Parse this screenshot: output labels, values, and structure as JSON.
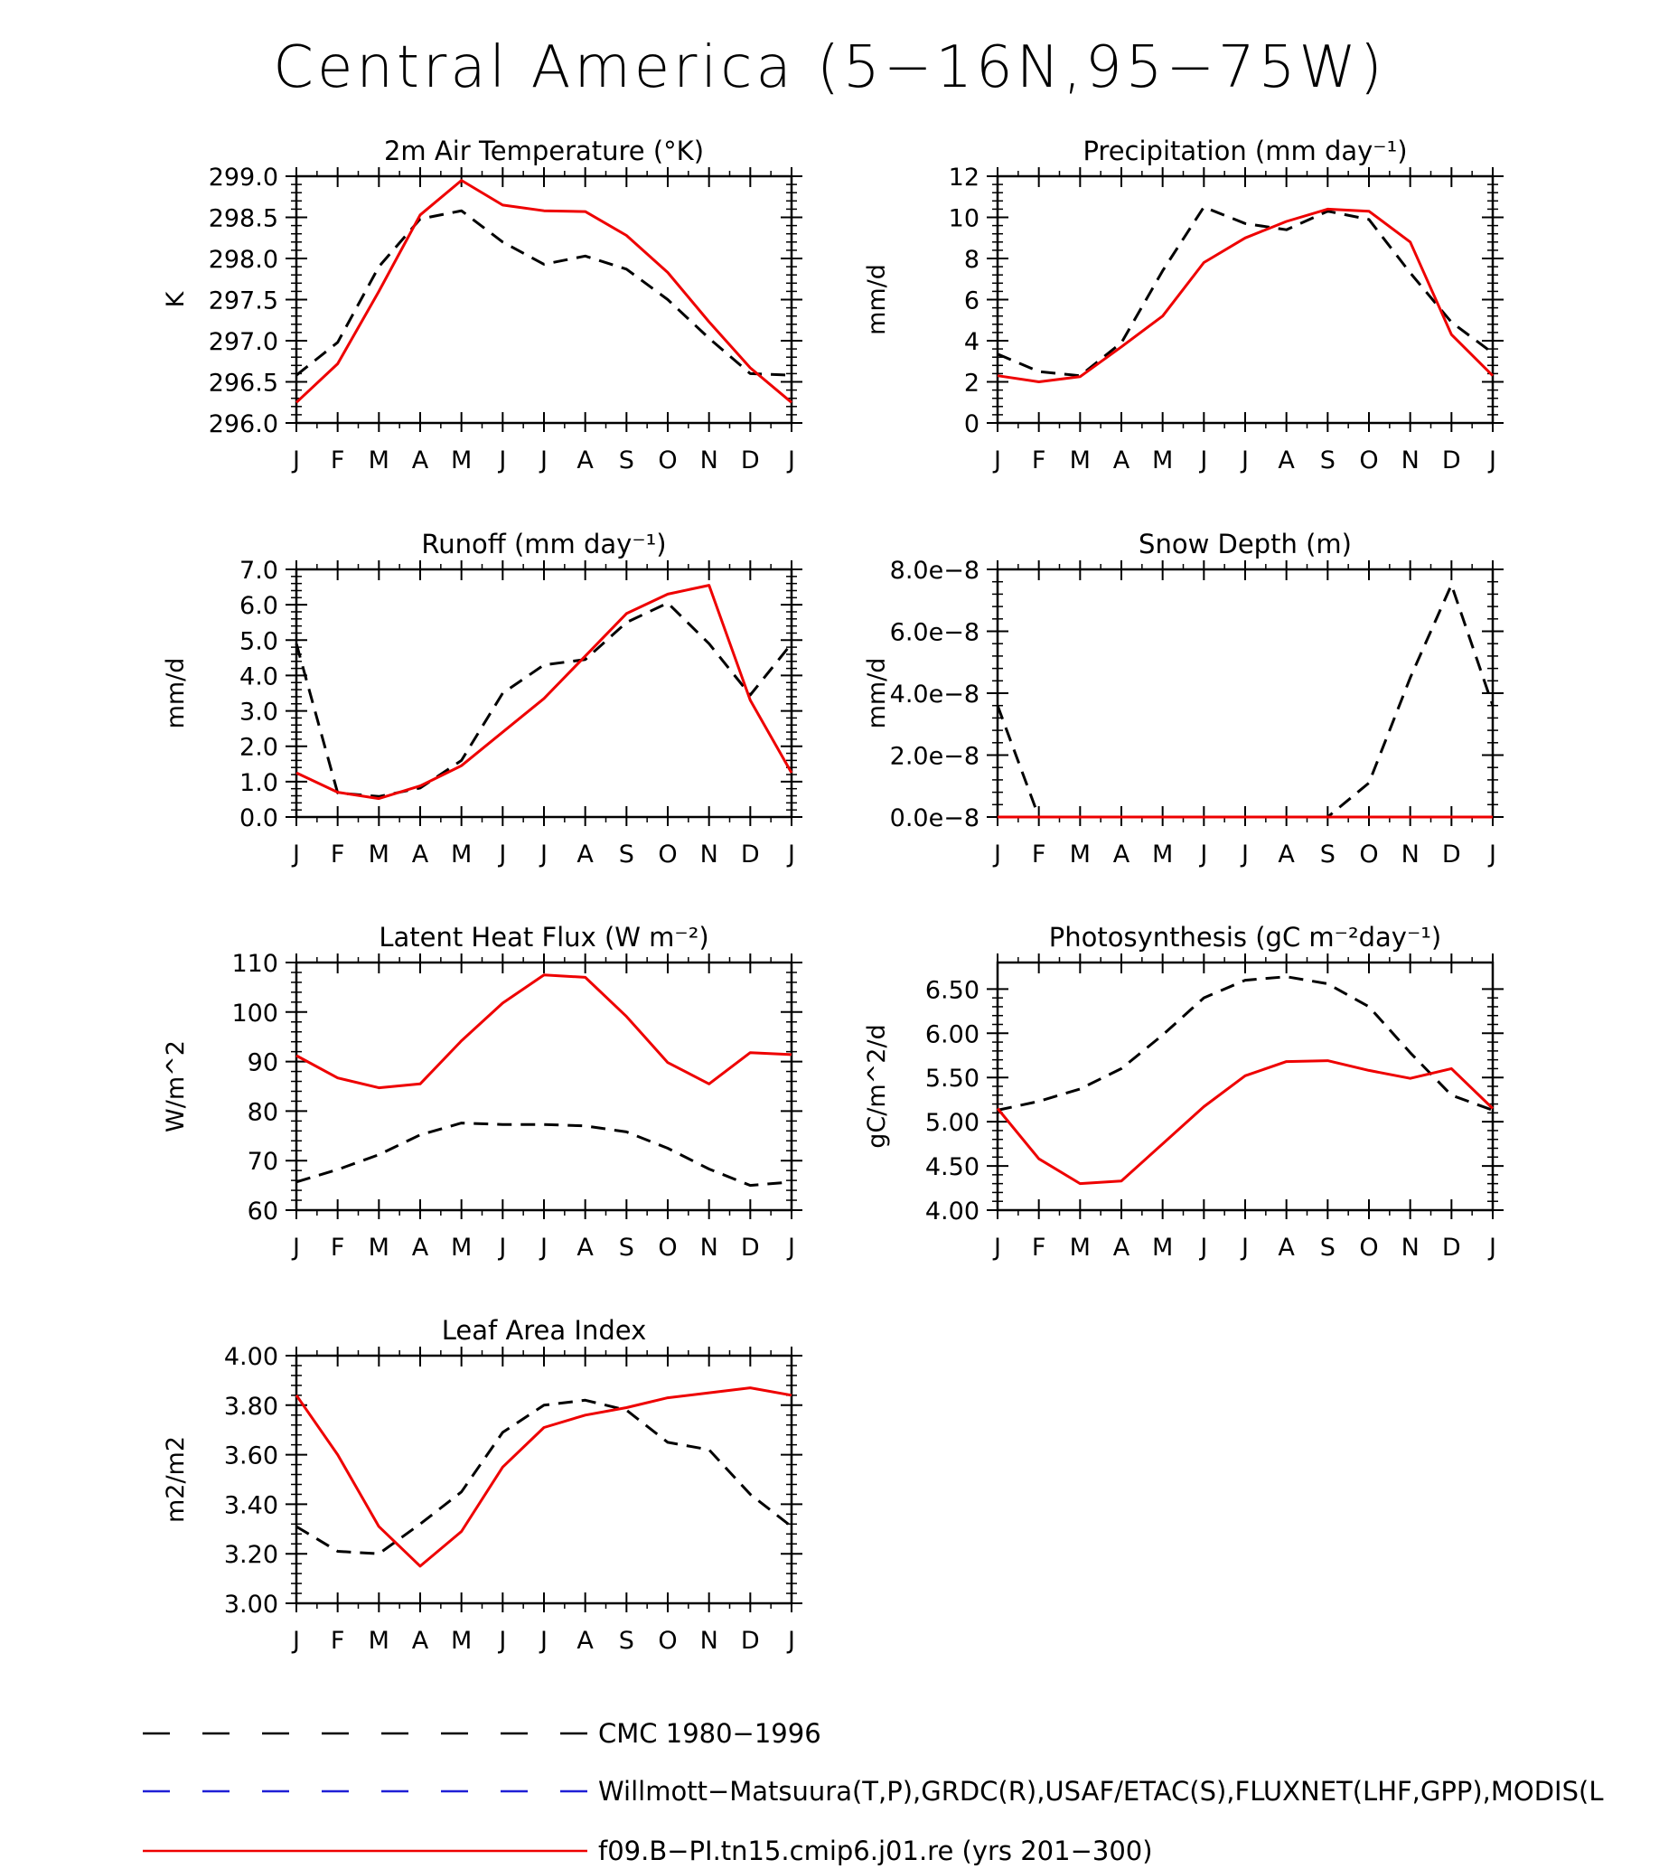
{
  "page": {
    "title": "Central America (5−16N,95−75W)"
  },
  "colors": {
    "obs": "#000000",
    "ref": "#1f1fd6",
    "model": "#ee0000"
  },
  "months": [
    "J",
    "F",
    "M",
    "A",
    "M",
    "J",
    "J",
    "A",
    "S",
    "O",
    "N",
    "D",
    "J"
  ],
  "legend": [
    {
      "label": "CMC 1980−1996",
      "style": "dashed",
      "color": "#000000"
    },
    {
      "label": "Willmott−Matsuura(T,P),GRDC(R),USAF/ETAC(S),FLUXNET(LHF,GPP),MODIS(L",
      "style": "dashed",
      "color": "#1f1fd6"
    },
    {
      "label": "f09.B−PI.tn15.cmip6.j01.re (yrs 201−300)",
      "style": "solid",
      "color": "#ee0000"
    }
  ],
  "chart_data": [
    {
      "type": "line",
      "title": "2m Air Temperature (°K)",
      "ylabel": "K",
      "ylim": [
        296.0,
        299.0
      ],
      "yticks": [
        "296.0",
        "296.5",
        "297.0",
        "297.5",
        "298.0",
        "298.5",
        "299.0"
      ],
      "x": [
        "J",
        "F",
        "M",
        "A",
        "M",
        "J",
        "J",
        "A",
        "S",
        "O",
        "N",
        "D",
        "J"
      ],
      "series": [
        {
          "name": "CMC 1980−1996",
          "values": [
            296.58,
            296.98,
            297.9,
            298.48,
            298.58,
            298.2,
            297.93,
            298.03,
            297.87,
            297.5,
            297.03,
            296.6,
            296.58
          ]
        },
        {
          "name": "f09.B−PI.tn15.cmip6.j01.re (yrs 201−300)",
          "values": [
            296.25,
            296.72,
            297.6,
            298.53,
            298.95,
            298.65,
            298.58,
            298.57,
            298.28,
            297.83,
            297.23,
            296.67,
            296.25
          ]
        }
      ]
    },
    {
      "type": "line",
      "title": "Precipitation (mm day⁻¹)",
      "ylabel": "mm/d",
      "ylim": [
        0,
        12
      ],
      "yticks": [
        "0",
        "2",
        "4",
        "6",
        "8",
        "10",
        "12"
      ],
      "x": [
        "J",
        "F",
        "M",
        "A",
        "M",
        "J",
        "J",
        "A",
        "S",
        "O",
        "N",
        "D",
        "J"
      ],
      "series": [
        {
          "name": "CMC 1980−1996",
          "values": [
            3.35,
            2.5,
            2.3,
            3.9,
            7.4,
            10.5,
            9.7,
            9.4,
            10.3,
            9.9,
            7.3,
            4.9,
            3.4
          ]
        },
        {
          "name": "f09.B−PI.tn15.cmip6.j01.re (yrs 201−300)",
          "values": [
            2.3,
            2.0,
            2.25,
            3.7,
            5.2,
            7.8,
            9.0,
            9.8,
            10.4,
            10.3,
            8.8,
            4.3,
            2.3
          ]
        }
      ]
    },
    {
      "type": "line",
      "title": "Runoff (mm day⁻¹)",
      "ylabel": "mm/d",
      "ylim": [
        0,
        7
      ],
      "yticks": [
        "0.0",
        "1.0",
        "2.0",
        "3.0",
        "4.0",
        "5.0",
        "6.0",
        "7.0"
      ],
      "x": [
        "J",
        "F",
        "M",
        "A",
        "M",
        "J",
        "J",
        "A",
        "S",
        "O",
        "N",
        "D",
        "J"
      ],
      "series": [
        {
          "name": "CMC 1980−1996",
          "values": [
            4.9,
            0.68,
            0.58,
            0.82,
            1.6,
            3.5,
            4.3,
            4.45,
            5.5,
            6.05,
            4.9,
            3.45,
            4.9
          ]
        },
        {
          "name": "f09.B−PI.tn15.cmip6.j01.re (yrs 201−300)",
          "values": [
            1.25,
            0.7,
            0.52,
            0.88,
            1.45,
            2.4,
            3.35,
            4.55,
            5.75,
            6.3,
            6.55,
            3.3,
            1.25
          ]
        }
      ]
    },
    {
      "type": "line",
      "title": "Snow Depth (m)",
      "ylabel": "mm/d",
      "ylim": [
        0,
        8e-08
      ],
      "yticks": [
        "0.0e−8",
        "2.0e−8",
        "4.0e−8",
        "6.0e−8",
        "8.0e−8"
      ],
      "x": [
        "J",
        "F",
        "M",
        "A",
        "M",
        "J",
        "J",
        "A",
        "S",
        "O",
        "N",
        "D",
        "J"
      ],
      "series": [
        {
          "name": "CMC 1980−1996",
          "values": [
            3.6e-08,
            0,
            0,
            0,
            0,
            0,
            0,
            0,
            0,
            1.1e-08,
            4.5e-08,
            7.5e-08,
            3.6e-08
          ]
        },
        {
          "name": "f09.B−PI.tn15.cmip6.j01.re (yrs 201−300)",
          "values": [
            0,
            0,
            0,
            0,
            0,
            0,
            0,
            0,
            0,
            0,
            0,
            0,
            0
          ]
        }
      ]
    },
    {
      "type": "line",
      "title": "Latent Heat Flux (W m⁻²)",
      "ylabel": "W/m^2",
      "ylim": [
        60,
        110
      ],
      "yticks": [
        "60",
        "70",
        "80",
        "90",
        "100",
        "110"
      ],
      "x": [
        "J",
        "F",
        "M",
        "A",
        "M",
        "J",
        "J",
        "A",
        "S",
        "O",
        "N",
        "D",
        "J"
      ],
      "series": [
        {
          "name": "CMC 1980−1996",
          "values": [
            65.7,
            68.2,
            71.2,
            75.2,
            77.6,
            77.3,
            77.3,
            77.0,
            75.8,
            72.5,
            68.3,
            65.0,
            65.7
          ]
        },
        {
          "name": "f09.B−PI.tn15.cmip6.j01.re (yrs 201−300)",
          "values": [
            91.2,
            86.7,
            84.7,
            85.5,
            94.2,
            101.8,
            107.5,
            107.0,
            99.1,
            89.8,
            85.5,
            91.8,
            91.4
          ]
        }
      ]
    },
    {
      "type": "line",
      "title": "Photosynthesis (gC m⁻²day⁻¹)",
      "ylabel": "gC/m^2/d",
      "ylim": [
        4.0,
        6.8
      ],
      "yticks": [
        "4.00",
        "4.50",
        "5.00",
        "5.50",
        "6.00",
        "6.50"
      ],
      "x": [
        "J",
        "F",
        "M",
        "A",
        "M",
        "J",
        "J",
        "A",
        "S",
        "O",
        "N",
        "D",
        "J"
      ],
      "series": [
        {
          "name": "CMC 1980−1996",
          "values": [
            5.13,
            5.23,
            5.37,
            5.6,
            5.98,
            6.4,
            6.6,
            6.64,
            6.56,
            6.3,
            5.78,
            5.3,
            5.13
          ]
        },
        {
          "name": "f09.B−PI.tn15.cmip6.j01.re (yrs 201−300)",
          "values": [
            5.15,
            4.58,
            4.3,
            4.33,
            4.75,
            5.17,
            5.52,
            5.68,
            5.69,
            5.58,
            5.49,
            5.6,
            5.15
          ]
        }
      ]
    },
    {
      "type": "line",
      "title": "Leaf Area Index",
      "ylabel": "m2/m2",
      "ylim": [
        3.0,
        4.0
      ],
      "yticks": [
        "3.00",
        "3.20",
        "3.40",
        "3.60",
        "3.80",
        "4.00"
      ],
      "x": [
        "J",
        "F",
        "M",
        "A",
        "M",
        "J",
        "J",
        "A",
        "S",
        "O",
        "N",
        "D",
        "J"
      ],
      "series": [
        {
          "name": "CMC 1980−1996",
          "values": [
            3.31,
            3.21,
            3.2,
            3.32,
            3.45,
            3.69,
            3.8,
            3.82,
            3.78,
            3.65,
            3.62,
            3.44,
            3.31
          ]
        },
        {
          "name": "f09.B−PI.tn15.cmip6.j01.re (yrs 201−300)",
          "values": [
            3.84,
            3.6,
            3.31,
            3.15,
            3.29,
            3.55,
            3.71,
            3.76,
            3.79,
            3.83,
            3.85,
            3.87,
            3.84
          ]
        }
      ]
    }
  ]
}
